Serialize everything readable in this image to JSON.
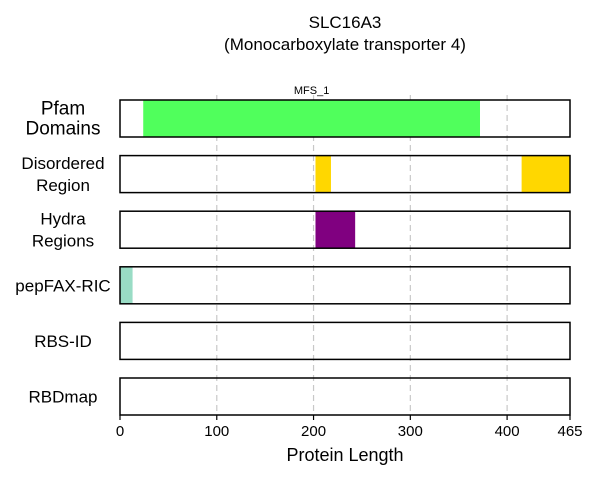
{
  "chart_data": {
    "type": "bar",
    "title_line1": "SLC16A3",
    "title_line2": "(Monocarboxylate transporter 4)",
    "xlabel": "Protein Length",
    "xlim": [
      0,
      465
    ],
    "xticks": [
      0,
      100,
      200,
      300,
      400,
      465
    ],
    "grid_x": [
      100,
      200,
      300,
      400
    ],
    "tracks": [
      {
        "label_lines": [
          "Pfam",
          "Domains"
        ],
        "large": true,
        "segments": [
          {
            "start": 24,
            "end": 372,
            "color": "#50ff5c",
            "label": "MFS_1"
          }
        ]
      },
      {
        "label_lines": [
          "Disordered",
          "Region"
        ],
        "large": false,
        "segments": [
          {
            "start": 202,
            "end": 218,
            "color": "#ffd700",
            "label": ""
          },
          {
            "start": 415,
            "end": 465,
            "color": "#ffd700",
            "label": ""
          }
        ]
      },
      {
        "label_lines": [
          "Hydra",
          "Regions"
        ],
        "large": false,
        "segments": [
          {
            "start": 202,
            "end": 243,
            "color": "#800080",
            "label": ""
          }
        ]
      },
      {
        "label_lines": [
          "pepFAX-RIC"
        ],
        "large": false,
        "segments": [
          {
            "start": 0,
            "end": 13,
            "color": "#99dcc5",
            "label": ""
          }
        ]
      },
      {
        "label_lines": [
          "RBS-ID"
        ],
        "large": false,
        "segments": []
      },
      {
        "label_lines": [
          "RBDmap"
        ],
        "large": false,
        "segments": []
      }
    ]
  }
}
